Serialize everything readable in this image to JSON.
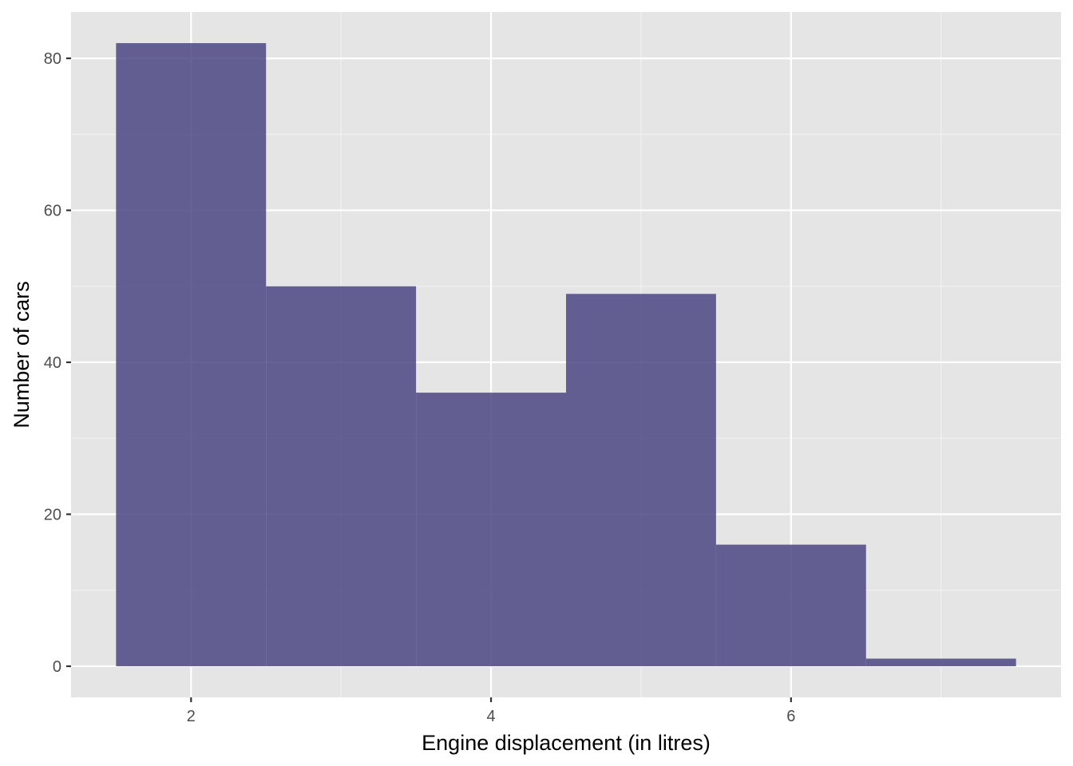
{
  "chart_data": {
    "type": "bar",
    "subtype": "histogram",
    "title": "",
    "xlabel": "Engine displacement (in litres)",
    "ylabel": "Number of cars",
    "bins": [
      {
        "x0": 1.5,
        "x1": 2.5,
        "count": 82
      },
      {
        "x0": 2.5,
        "x1": 3.5,
        "count": 50
      },
      {
        "x0": 3.5,
        "x1": 4.5,
        "count": 36
      },
      {
        "x0": 4.5,
        "x1": 5.5,
        "count": 49
      },
      {
        "x0": 5.5,
        "x1": 6.5,
        "count": 16
      },
      {
        "x0": 6.5,
        "x1": 7.5,
        "count": 1
      }
    ],
    "xlim": [
      1.2,
      7.8
    ],
    "ylim": [
      -4.1,
      86.1
    ],
    "x_ticks": [
      2,
      4,
      6
    ],
    "x_tick_labels": [
      "2",
      "4",
      "6"
    ],
    "x_minor_ticks": [
      3,
      5,
      7
    ],
    "y_ticks": [
      0,
      20,
      40,
      60,
      80
    ],
    "y_tick_labels": [
      "0",
      "20",
      "40",
      "60",
      "80"
    ],
    "y_minor_ticks": [
      10,
      30,
      50,
      70
    ],
    "grid": true,
    "legend": "none",
    "colors": {
      "bar_fill": "#4b4682",
      "bar_opacity": 0.85,
      "panel_background": "#e5e5e5",
      "grid_major": "#ffffff",
      "grid_minor": "#f2f2f2",
      "tick_mark": "#333333",
      "tick_label": "#4d4d4d"
    }
  }
}
